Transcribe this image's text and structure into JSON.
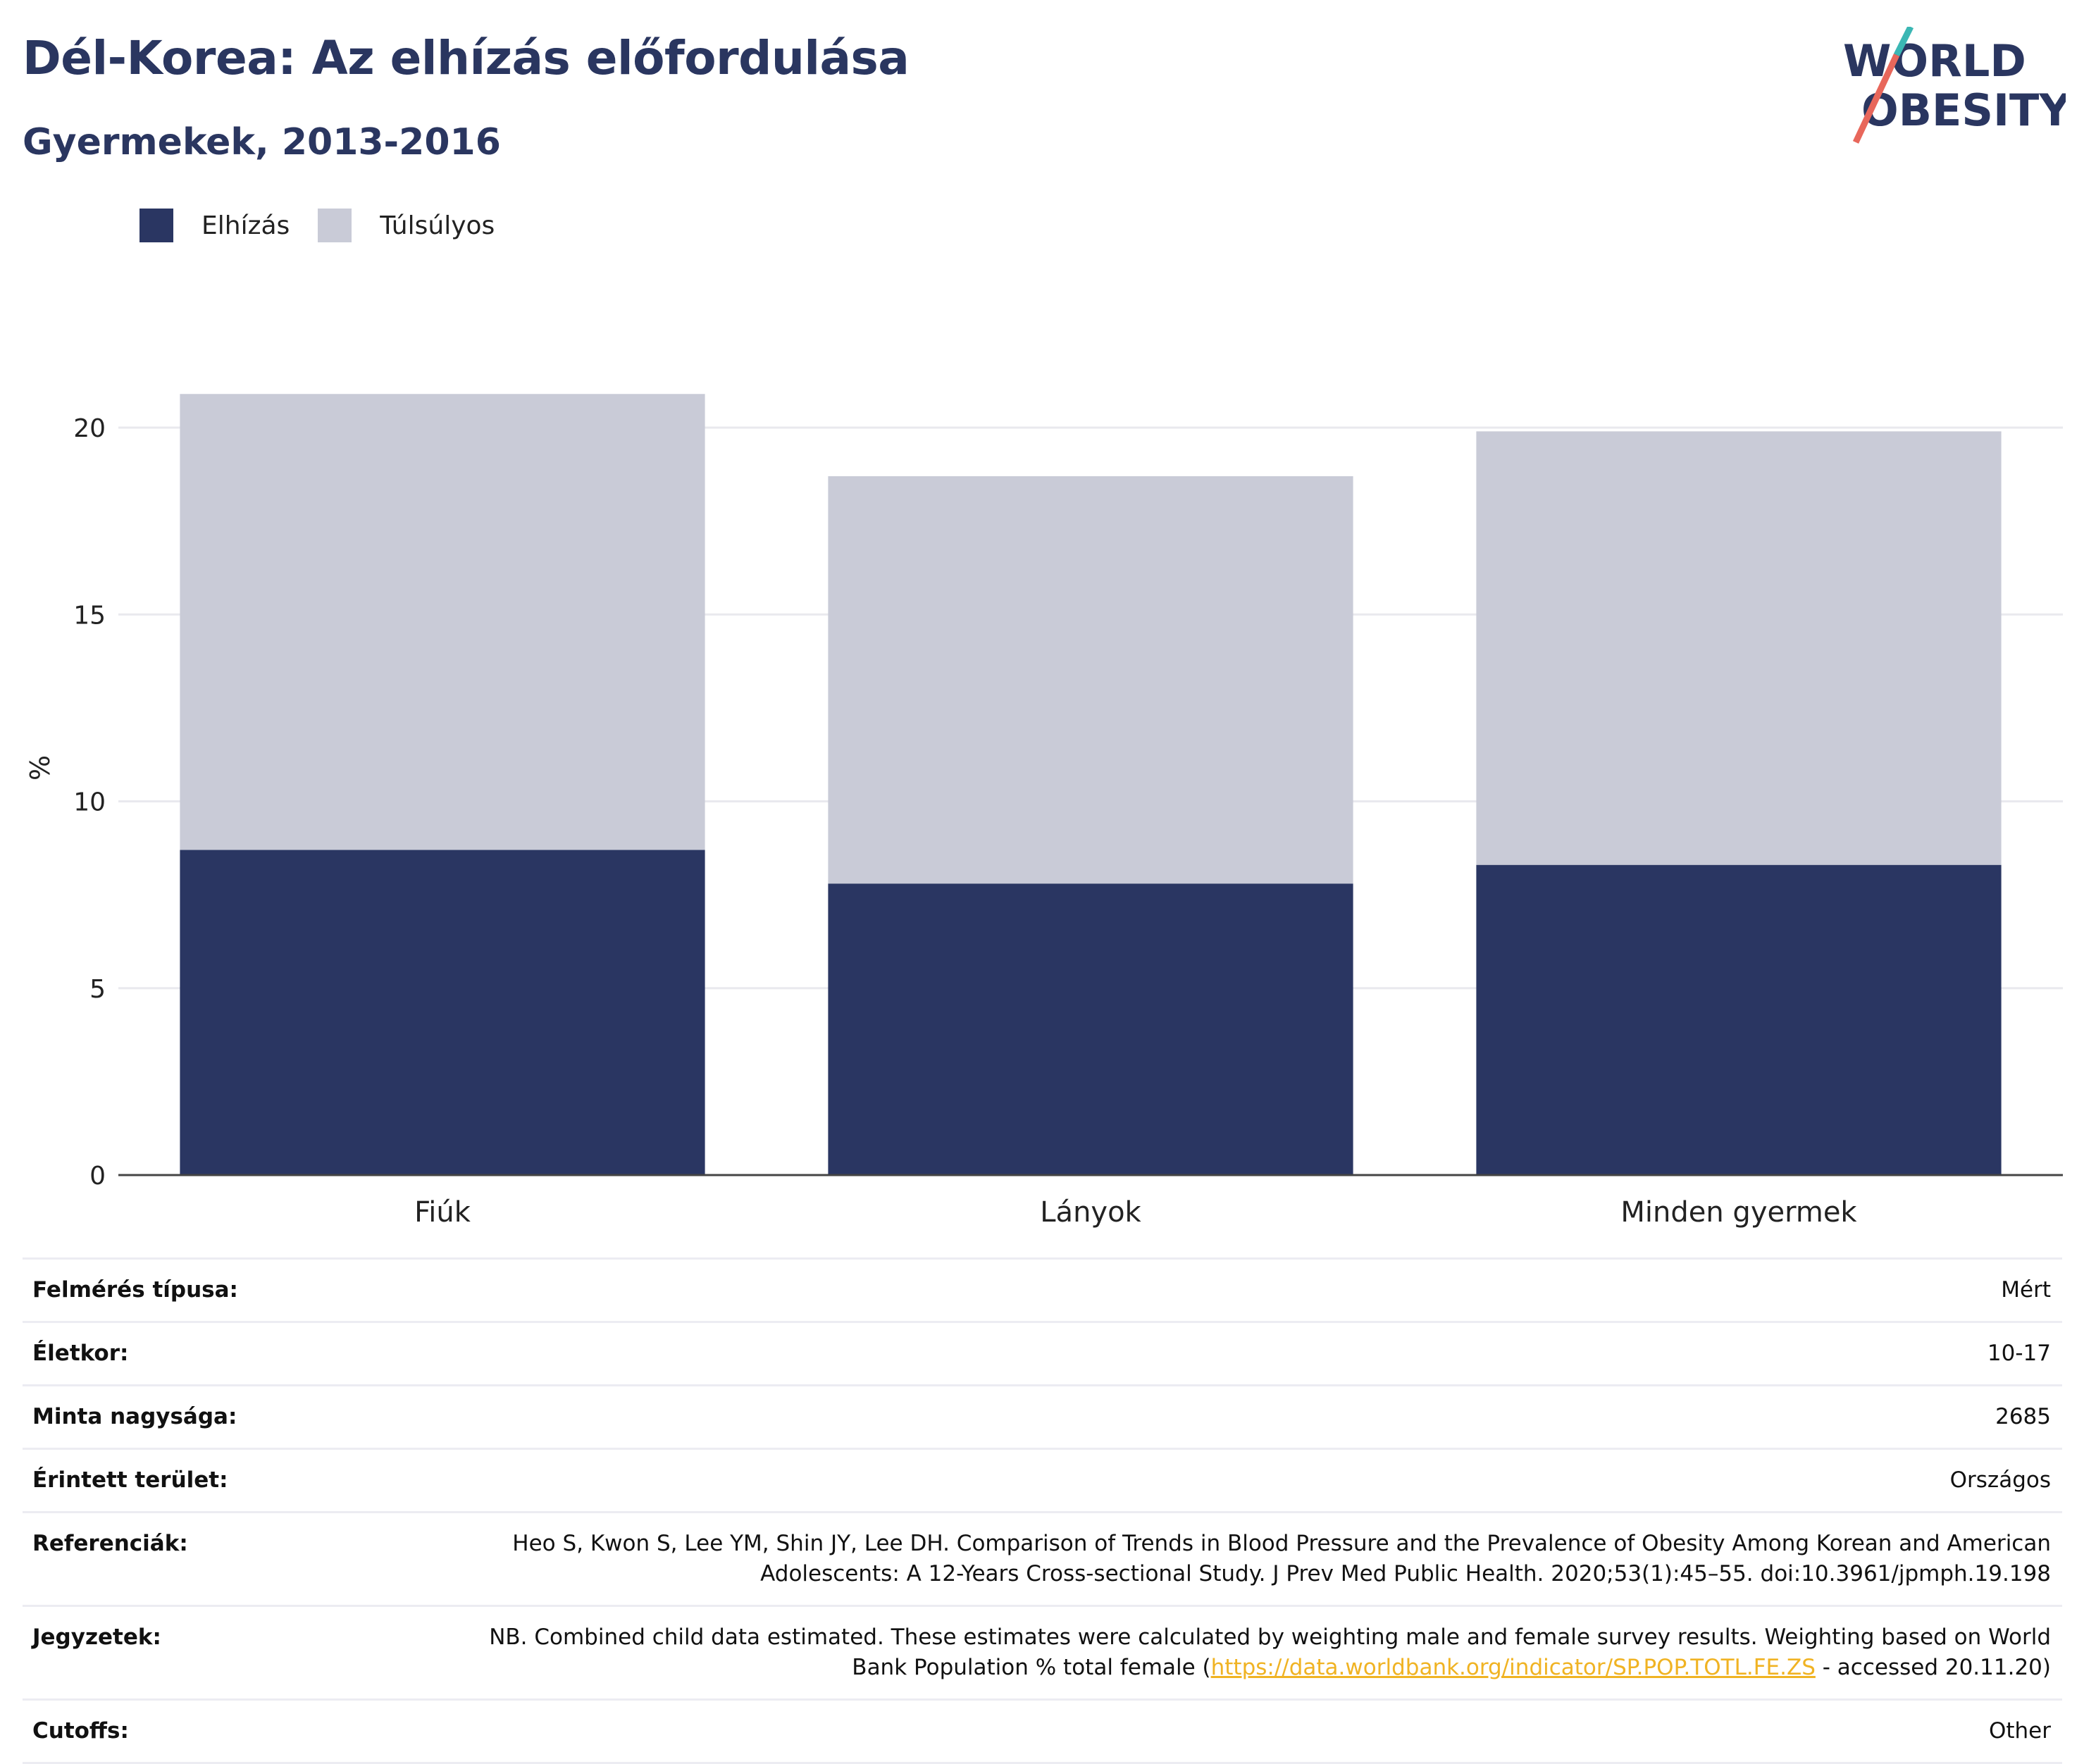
{
  "title": "Dél-Korea: Az elhízás előfordulása",
  "subtitle": "Gyermekek, 2013-2016",
  "logo": {
    "line1": "WORLD",
    "line2": "OBESITY"
  },
  "chart_data": {
    "type": "bar",
    "stacked": true,
    "categories": [
      "Fiúk",
      "Lányok",
      "Minden gyermek"
    ],
    "series": [
      {
        "name": "Elhízás",
        "values": [
          8.7,
          7.8,
          8.3
        ],
        "color": "#2a3662"
      },
      {
        "name": "Túlsúlyos",
        "values": [
          12.2,
          10.9,
          11.6
        ],
        "color": "#c9cbd7"
      }
    ],
    "ylabel": "%",
    "ylim": [
      0,
      21
    ],
    "yticks": [
      0,
      5,
      10,
      15,
      20
    ],
    "grid": true,
    "legend_position": "top-left"
  },
  "meta": {
    "survey_type": {
      "label": "Felmérés típusa:",
      "value": "Mért"
    },
    "age": {
      "label": "Életkor:",
      "value": "10-17"
    },
    "sample_size": {
      "label": "Minta nagysága:",
      "value": "2685"
    },
    "area": {
      "label": "Érintett terület:",
      "value": "Országos"
    },
    "references": {
      "label": "Referenciák:",
      "value": "Heo S, Kwon S, Lee YM, Shin JY, Lee DH. Comparison of Trends in Blood Pressure and the Prevalence of Obesity Among Korean and American Adolescents: A 12-Years Cross-sectional Study. J Prev Med Public Health. 2020;53(1):45–55. doi:10.3961/jpmph.19.198"
    },
    "notes": {
      "label": "Jegyzetek:",
      "value_before": "NB. Combined child data estimated. These estimates were calculated by weighting male and female survey results. Weighting based on World Bank Population % total female (",
      "link": "https://data.worldbank.org/indicator/SP.POP.TOTL.FE.ZS",
      "value_after": " - accessed 20.11.20)"
    },
    "cutoffs": {
      "label": "Cutoffs:",
      "value": "Other"
    }
  }
}
